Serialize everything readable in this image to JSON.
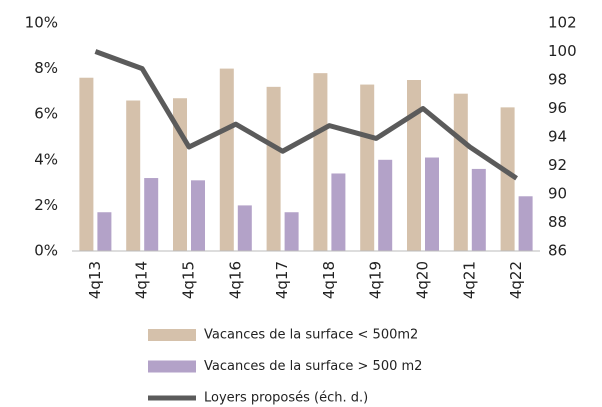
{
  "chart_data": {
    "type": "bar",
    "categories": [
      "4q13",
      "4q14",
      "4q15",
      "4q16",
      "4q17",
      "4q18",
      "4q19",
      "4q20",
      "4q21",
      "4q22"
    ],
    "series": [
      {
        "name": "Vacances de la surface < 500m2",
        "color": "#d5c1ab",
        "values": [
          7.6,
          6.6,
          6.7,
          8.0,
          7.2,
          7.8,
          7.3,
          7.5,
          6.9,
          6.3
        ]
      },
      {
        "name": "Vacances de la surface > 500 m2",
        "color": "#b3a2c8",
        "values": [
          1.7,
          3.2,
          3.1,
          2.0,
          1.7,
          3.4,
          4.0,
          4.1,
          3.6,
          2.4
        ]
      },
      {
        "name": "Loyers proposés (éch. d.)",
        "color": "#5b5b5b",
        "type": "line",
        "axis": "y2",
        "values": [
          100.0,
          98.8,
          93.3,
          94.9,
          93.0,
          94.8,
          93.9,
          96.0,
          93.3,
          91.1
        ]
      }
    ],
    "ylim": [
      0,
      10
    ],
    "yticks": [
      {
        "value": 0,
        "label": "0%"
      },
      {
        "value": 2,
        "label": "2%"
      },
      {
        "value": 4,
        "label": "4%"
      },
      {
        "value": 6,
        "label": "6%"
      },
      {
        "value": 8,
        "label": "8%"
      },
      {
        "value": 10,
        "label": "10%"
      }
    ],
    "y2lim": [
      86,
      102
    ],
    "y2ticks": [
      86,
      88,
      90,
      92,
      94,
      96,
      98,
      100,
      102
    ],
    "legend": "bottom"
  }
}
